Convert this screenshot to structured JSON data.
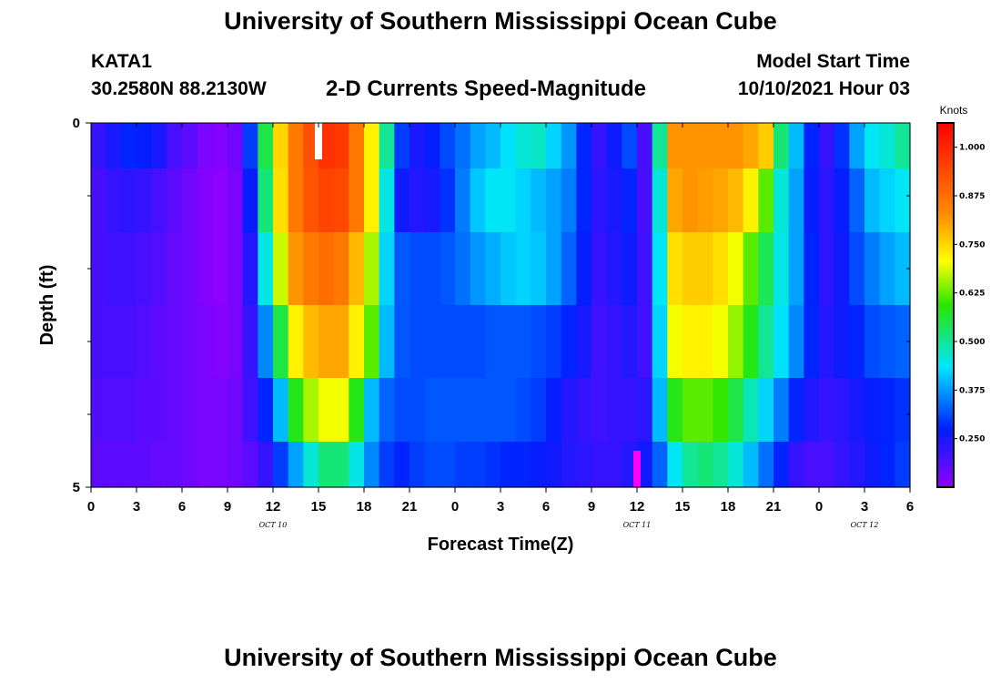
{
  "header": {
    "title": "University of Southern Mississippi Ocean Cube",
    "station": "KATA1",
    "coords": "30.2580N  88.2130W",
    "subtitle": "2-D Currents Speed-Magnitude",
    "model_start_label": "Model Start Time",
    "model_start_value": "10/10/2021 Hour 03"
  },
  "footer": {
    "title": "University of Southern Mississippi Ocean Cube"
  },
  "chart_data": {
    "type": "heatmap",
    "xlabel": "Forecast Time(Z)",
    "ylabel": "Depth (ft)",
    "x_tick_labels": [
      "0",
      "3",
      "6",
      "9",
      "12",
      "15",
      "18",
      "21",
      "0",
      "3",
      "6",
      "9",
      "12",
      "15",
      "18",
      "21",
      "0",
      "3",
      "6"
    ],
    "date_labels": [
      {
        "text": "OCT  10",
        "hours": 12
      },
      {
        "text": "OCT  11",
        "hours": 36
      },
      {
        "text": "OCT  12",
        "hours": 51
      }
    ],
    "xlim": [
      0,
      54
    ],
    "ylim": [
      0,
      5
    ],
    "y_tick_labels": [
      "0",
      "5"
    ],
    "y_minor_ticks": [
      1,
      2,
      3,
      4
    ],
    "depth_levels": [
      0.25,
      1,
      2,
      3,
      4,
      4.75
    ],
    "hours": [
      0,
      1,
      2,
      3,
      4,
      5,
      6,
      7,
      8,
      9,
      10,
      11,
      12,
      13,
      14,
      15,
      16,
      17,
      18,
      19,
      20,
      21,
      22,
      23,
      24,
      25,
      26,
      27,
      28,
      29,
      30,
      31,
      32,
      33,
      34,
      35,
      36,
      37,
      38,
      39,
      40,
      41,
      42,
      43,
      44,
      45,
      46,
      47,
      48,
      49,
      50,
      51,
      52,
      53
    ],
    "speed_knots": [
      [
        0.22,
        0.25,
        0.28,
        0.27,
        0.25,
        0.2,
        0.18,
        0.15,
        0.14,
        0.16,
        0.3,
        0.55,
        0.75,
        0.86,
        0.93,
        0.98,
        0.97,
        0.86,
        0.72,
        0.5,
        0.3,
        0.25,
        0.27,
        0.31,
        0.34,
        0.38,
        0.4,
        0.43,
        0.46,
        0.47,
        0.42,
        0.37,
        0.28,
        0.22,
        0.26,
        0.31,
        0.2,
        0.5,
        0.82,
        0.82,
        0.82,
        0.82,
        0.82,
        0.8,
        0.76,
        0.52,
        0.4,
        0.28,
        0.22,
        0.29,
        0.38,
        0.44,
        0.46,
        0.5
      ],
      [
        0.2,
        0.22,
        0.23,
        0.22,
        0.2,
        0.18,
        0.16,
        0.14,
        0.13,
        0.15,
        0.27,
        0.52,
        0.74,
        0.86,
        0.92,
        0.95,
        0.94,
        0.86,
        0.72,
        0.45,
        0.26,
        0.24,
        0.25,
        0.29,
        0.35,
        0.41,
        0.44,
        0.44,
        0.42,
        0.4,
        0.38,
        0.35,
        0.28,
        0.23,
        0.25,
        0.28,
        0.2,
        0.46,
        0.8,
        0.82,
        0.81,
        0.8,
        0.78,
        0.72,
        0.62,
        0.46,
        0.38,
        0.27,
        0.23,
        0.27,
        0.33,
        0.4,
        0.42,
        0.44
      ],
      [
        0.2,
        0.21,
        0.21,
        0.2,
        0.19,
        0.17,
        0.16,
        0.14,
        0.13,
        0.15,
        0.24,
        0.45,
        0.68,
        0.82,
        0.86,
        0.88,
        0.86,
        0.78,
        0.66,
        0.42,
        0.32,
        0.31,
        0.31,
        0.32,
        0.34,
        0.37,
        0.39,
        0.41,
        0.42,
        0.41,
        0.38,
        0.33,
        0.27,
        0.22,
        0.24,
        0.26,
        0.21,
        0.44,
        0.74,
        0.76,
        0.76,
        0.74,
        0.7,
        0.62,
        0.54,
        0.45,
        0.38,
        0.28,
        0.23,
        0.26,
        0.31,
        0.35,
        0.38,
        0.4
      ],
      [
        0.2,
        0.2,
        0.2,
        0.19,
        0.18,
        0.17,
        0.16,
        0.15,
        0.14,
        0.15,
        0.22,
        0.36,
        0.55,
        0.72,
        0.78,
        0.8,
        0.8,
        0.72,
        0.62,
        0.4,
        0.32,
        0.31,
        0.31,
        0.31,
        0.31,
        0.31,
        0.32,
        0.32,
        0.32,
        0.31,
        0.3,
        0.28,
        0.25,
        0.21,
        0.22,
        0.24,
        0.21,
        0.42,
        0.7,
        0.72,
        0.72,
        0.7,
        0.65,
        0.58,
        0.5,
        0.43,
        0.36,
        0.28,
        0.24,
        0.26,
        0.28,
        0.31,
        0.32,
        0.33
      ],
      [
        0.19,
        0.19,
        0.19,
        0.18,
        0.18,
        0.17,
        0.16,
        0.15,
        0.15,
        0.16,
        0.21,
        0.28,
        0.4,
        0.58,
        0.66,
        0.7,
        0.7,
        0.58,
        0.4,
        0.33,
        0.31,
        0.31,
        0.32,
        0.32,
        0.32,
        0.32,
        0.32,
        0.32,
        0.31,
        0.3,
        0.27,
        0.24,
        0.22,
        0.21,
        0.22,
        0.22,
        0.23,
        0.4,
        0.58,
        0.62,
        0.62,
        0.6,
        0.55,
        0.48,
        0.42,
        0.35,
        0.28,
        0.24,
        0.22,
        0.23,
        0.25,
        0.27,
        0.28,
        0.29
      ],
      [
        0.18,
        0.18,
        0.18,
        0.18,
        0.17,
        0.17,
        0.16,
        0.15,
        0.15,
        0.16,
        0.18,
        0.22,
        0.3,
        0.38,
        0.46,
        0.52,
        0.52,
        0.45,
        0.36,
        0.3,
        0.28,
        0.3,
        0.31,
        0.31,
        0.3,
        0.3,
        0.29,
        0.28,
        0.28,
        0.27,
        0.26,
        0.24,
        0.23,
        0.22,
        0.22,
        0.24,
        0.26,
        0.33,
        0.44,
        0.5,
        0.52,
        0.5,
        0.46,
        0.4,
        0.34,
        0.28,
        0.22,
        0.2,
        0.2,
        0.22,
        0.24,
        0.26,
        0.28,
        0.3
      ]
    ],
    "colorbar": {
      "label": "Knots",
      "range": [
        0.125,
        1.0625
      ],
      "tick_values": [
        0.25,
        0.375,
        0.5,
        0.625,
        0.75,
        0.875,
        1.0
      ],
      "tick_labels": [
        "0.250",
        "0.375",
        "0.500",
        "0.625",
        "0.750",
        "0.875",
        "1.000"
      ]
    },
    "markers": [
      {
        "hours": 15,
        "depth_range": [
          0,
          0.5
        ],
        "color": "#ffffff"
      },
      {
        "hours": 36,
        "depth_range": [
          4.5,
          5
        ],
        "color": "#ff00ff"
      }
    ]
  }
}
